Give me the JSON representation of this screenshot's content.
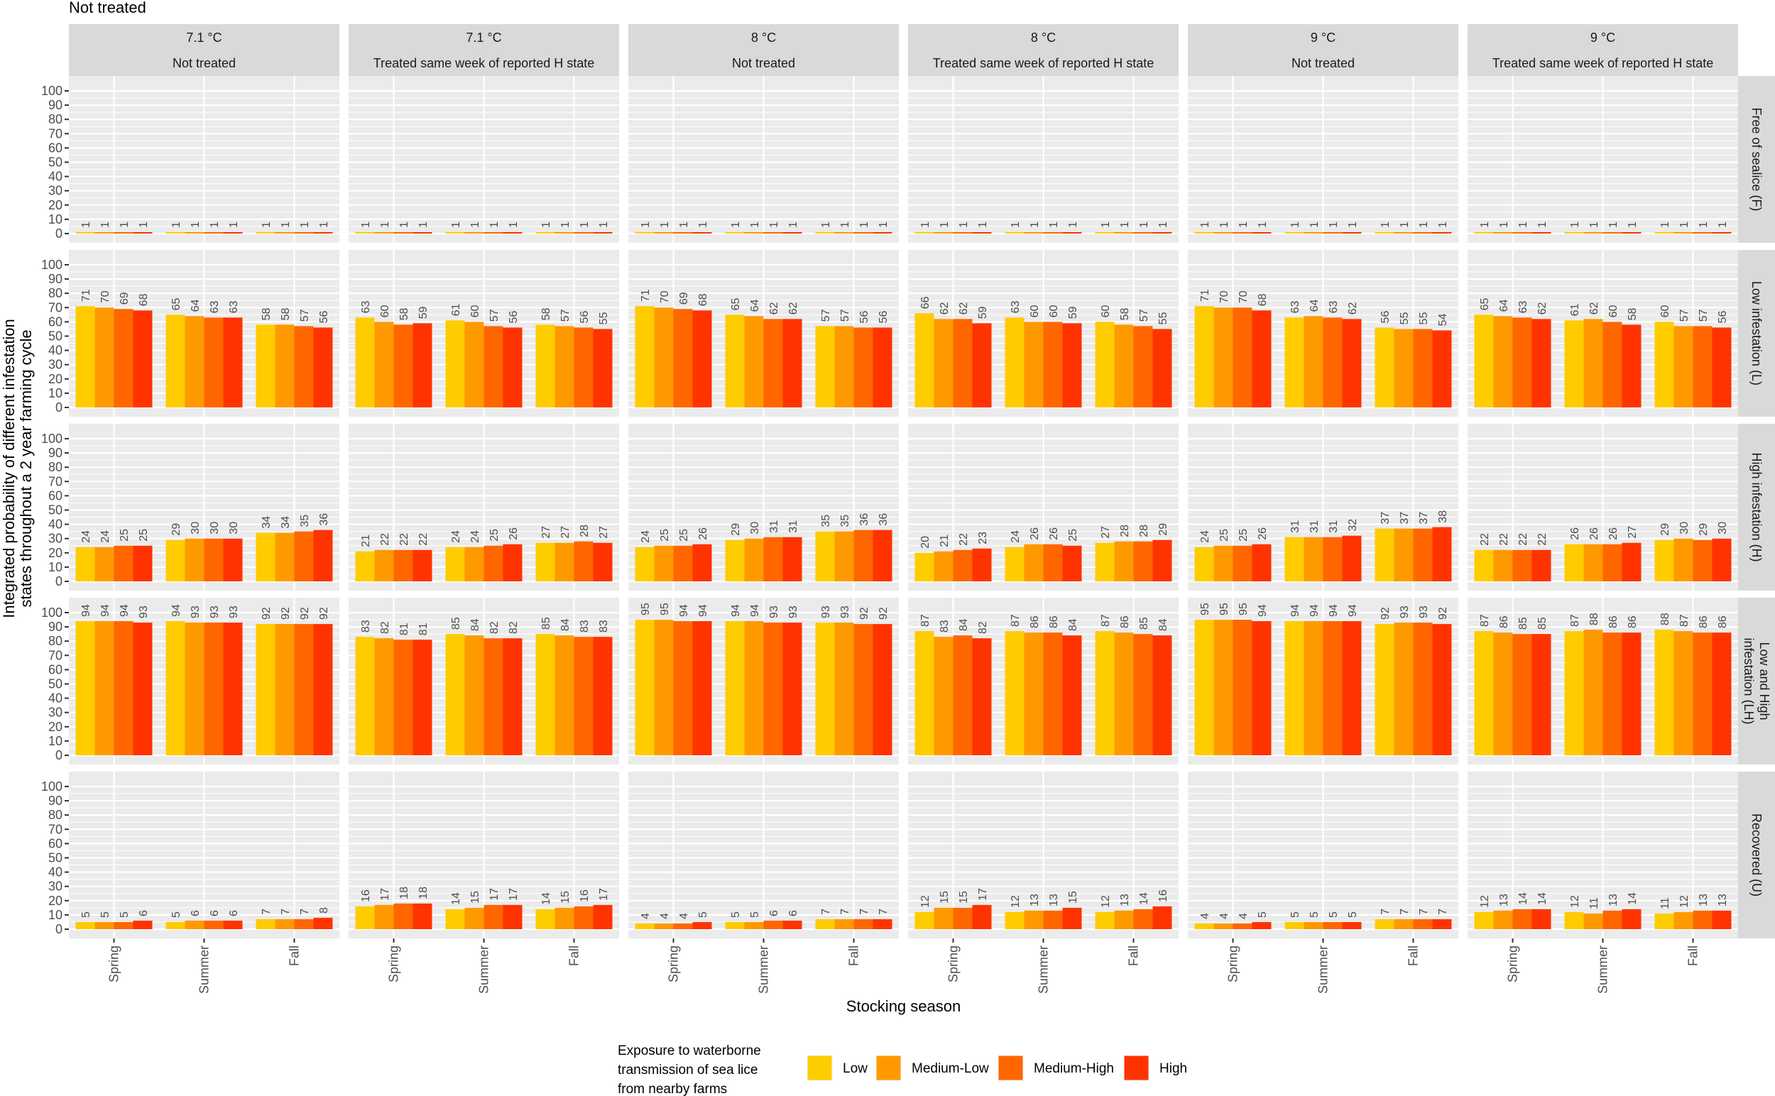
{
  "chart_data": {
    "type": "bar",
    "title": "Not treated",
    "xlabel": "Stocking season",
    "ylabel": [
      "Integrated probability of different infestation",
      "states throughout a 2 year farming cycle"
    ],
    "ylim": [
      0,
      100
    ],
    "yticks": [
      "0",
      "10",
      "20",
      "30",
      "40",
      "50",
      "60",
      "70",
      "80",
      "90",
      "100"
    ],
    "grid": true,
    "categories": [
      "Spring",
      "Summer",
      "Fall"
    ],
    "columns": [
      {
        "temperature": "7.1 °C",
        "treatment": "Not treated"
      },
      {
        "temperature": "7.1 °C",
        "treatment": "Treated same week of reported H state"
      },
      {
        "temperature": "8 °C",
        "treatment": "Not treated"
      },
      {
        "temperature": "8 °C",
        "treatment": "Treated same week of reported H state"
      },
      {
        "temperature": "9 °C",
        "treatment": "Not treated"
      },
      {
        "temperature": "9 °C",
        "treatment": "Treated same week of reported H state"
      }
    ],
    "legend": {
      "title": [
        "Exposure to waterborne",
        "transmission of sea lice",
        "from nearby farms"
      ],
      "placement": "bottom",
      "series": [
        {
          "name": "Low",
          "color": "#FFCC00"
        },
        {
          "name": "Medium-Low",
          "color": "#FF9900"
        },
        {
          "name": "Medium-High",
          "color": "#FF6600"
        },
        {
          "name": "High",
          "color": "#FF3300"
        }
      ]
    },
    "rows": [
      {
        "label": [
          "Free of sealice (F)"
        ],
        "values": [
          [
            [
              1,
              1,
              1,
              1
            ],
            [
              1,
              1,
              1,
              1
            ],
            [
              1,
              1,
              1,
              1
            ]
          ],
          [
            [
              1,
              1,
              1,
              1
            ],
            [
              1,
              1,
              1,
              1
            ],
            [
              1,
              1,
              1,
              1
            ]
          ],
          [
            [
              1,
              1,
              1,
              1
            ],
            [
              1,
              1,
              1,
              1
            ],
            [
              1,
              1,
              1,
              1
            ]
          ],
          [
            [
              1,
              1,
              1,
              1
            ],
            [
              1,
              1,
              1,
              1
            ],
            [
              1,
              1,
              1,
              1
            ]
          ],
          [
            [
              1,
              1,
              1,
              1
            ],
            [
              1,
              1,
              1,
              1
            ],
            [
              1,
              1,
              1,
              1
            ]
          ],
          [
            [
              1,
              1,
              1,
              1
            ],
            [
              1,
              1,
              1,
              1
            ],
            [
              1,
              1,
              1,
              1
            ]
          ]
        ]
      },
      {
        "label": [
          "Low infestation (L)"
        ],
        "values": [
          [
            [
              71,
              70,
              69,
              68
            ],
            [
              65,
              64,
              63,
              63
            ],
            [
              58,
              58,
              57,
              56
            ]
          ],
          [
            [
              63,
              60,
              58,
              59
            ],
            [
              61,
              60,
              57,
              56
            ],
            [
              58,
              57,
              56,
              55
            ]
          ],
          [
            [
              71,
              70,
              69,
              68
            ],
            [
              65,
              64,
              62,
              62
            ],
            [
              57,
              57,
              56,
              56
            ]
          ],
          [
            [
              66,
              62,
              62,
              59
            ],
            [
              63,
              60,
              60,
              59
            ],
            [
              60,
              58,
              57,
              55
            ]
          ],
          [
            [
              71,
              70,
              70,
              68
            ],
            [
              63,
              64,
              63,
              62
            ],
            [
              56,
              55,
              55,
              54
            ]
          ],
          [
            [
              65,
              64,
              63,
              62
            ],
            [
              61,
              62,
              60,
              58
            ],
            [
              60,
              57,
              57,
              56
            ]
          ]
        ]
      },
      {
        "label": [
          "High infestation (H)"
        ],
        "values": [
          [
            [
              24,
              24,
              25,
              25
            ],
            [
              29,
              30,
              30,
              30
            ],
            [
              34,
              34,
              35,
              36
            ]
          ],
          [
            [
              21,
              22,
              22,
              22
            ],
            [
              24,
              24,
              25,
              26
            ],
            [
              27,
              27,
              28,
              27
            ]
          ],
          [
            [
              24,
              25,
              25,
              26
            ],
            [
              29,
              30,
              31,
              31
            ],
            [
              35,
              35,
              36,
              36
            ]
          ],
          [
            [
              20,
              21,
              22,
              23
            ],
            [
              24,
              26,
              26,
              25
            ],
            [
              27,
              28,
              28,
              29
            ]
          ],
          [
            [
              24,
              25,
              25,
              26
            ],
            [
              31,
              31,
              31,
              32
            ],
            [
              37,
              37,
              37,
              38
            ]
          ],
          [
            [
              22,
              22,
              22,
              22
            ],
            [
              26,
              26,
              26,
              27
            ],
            [
              29,
              30,
              29,
              30
            ]
          ]
        ]
      },
      {
        "label": [
          "Low and High",
          "infestation (LH)"
        ],
        "values": [
          [
            [
              94,
              94,
              94,
              93
            ],
            [
              94,
              93,
              93,
              93
            ],
            [
              92,
              92,
              92,
              92
            ]
          ],
          [
            [
              83,
              82,
              81,
              81
            ],
            [
              85,
              84,
              82,
              82
            ],
            [
              85,
              84,
              83,
              83
            ]
          ],
          [
            [
              95,
              95,
              94,
              94
            ],
            [
              94,
              94,
              93,
              93
            ],
            [
              93,
              93,
              92,
              92
            ]
          ],
          [
            [
              87,
              83,
              84,
              82
            ],
            [
              87,
              86,
              86,
              84
            ],
            [
              87,
              86,
              85,
              84
            ]
          ],
          [
            [
              95,
              95,
              95,
              94
            ],
            [
              94,
              94,
              94,
              94
            ],
            [
              92,
              93,
              93,
              92
            ]
          ],
          [
            [
              87,
              86,
              85,
              85
            ],
            [
              87,
              88,
              86,
              86
            ],
            [
              88,
              87,
              86,
              86
            ]
          ]
        ]
      },
      {
        "label": [
          "Recovered (U)"
        ],
        "values": [
          [
            [
              5,
              5,
              5,
              6
            ],
            [
              5,
              6,
              6,
              6
            ],
            [
              7,
              7,
              7,
              8
            ]
          ],
          [
            [
              16,
              17,
              18,
              18
            ],
            [
              14,
              15,
              17,
              17
            ],
            [
              14,
              15,
              16,
              17
            ]
          ],
          [
            [
              4,
              4,
              4,
              5
            ],
            [
              5,
              5,
              6,
              6
            ],
            [
              7,
              7,
              7,
              7
            ]
          ],
          [
            [
              12,
              15,
              15,
              17
            ],
            [
              12,
              13,
              13,
              15
            ],
            [
              12,
              13,
              14,
              16
            ]
          ],
          [
            [
              4,
              4,
              4,
              5
            ],
            [
              5,
              5,
              5,
              5
            ],
            [
              7,
              7,
              7,
              7
            ]
          ],
          [
            [
              12,
              13,
              14,
              14
            ],
            [
              12,
              11,
              13,
              14
            ],
            [
              11,
              12,
              13,
              13
            ]
          ]
        ]
      }
    ]
  }
}
